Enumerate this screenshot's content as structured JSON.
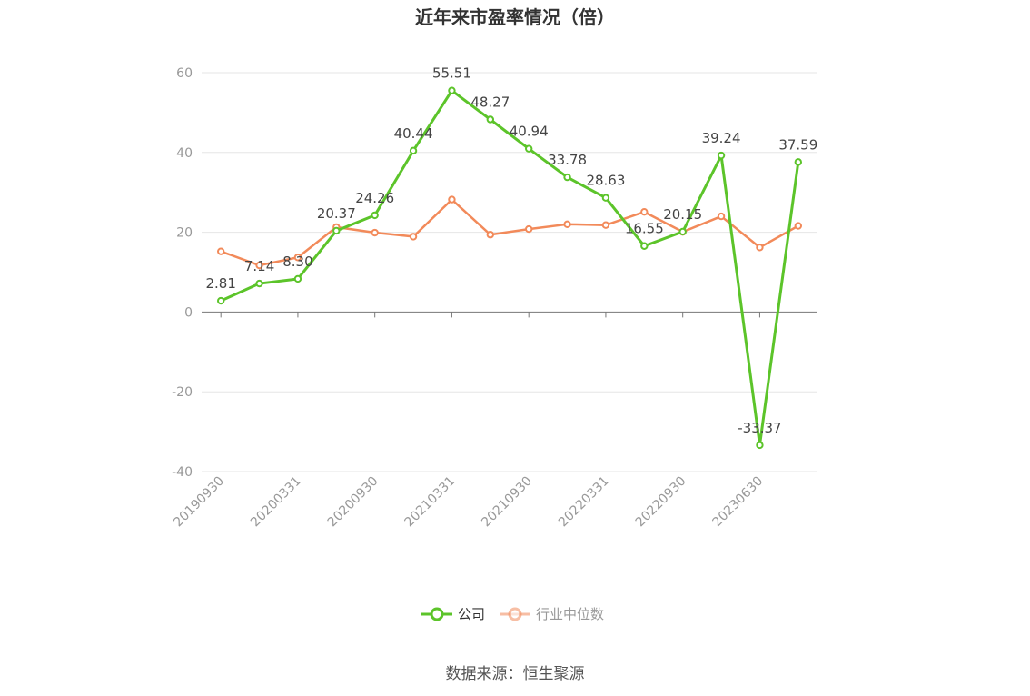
{
  "chart_data": {
    "type": "line",
    "title": "近年来市盈率情况（倍）",
    "source": "数据来源：恒生聚源",
    "x_tick_labels": [
      "20190930",
      "20200331",
      "20200930",
      "20210331",
      "20210930",
      "20220331",
      "20220930",
      "20230630"
    ],
    "y_ticks": [
      60,
      40,
      20,
      0,
      -20,
      -40
    ],
    "ylim": [
      -40,
      60
    ],
    "grid": true,
    "legend_position": "bottom",
    "series": [
      {
        "name": "公司",
        "color": "#5cc42a",
        "values": [
          2.81,
          7.14,
          8.3,
          20.37,
          24.26,
          40.44,
          55.51,
          48.27,
          40.94,
          33.78,
          28.63,
          16.55,
          20.15,
          39.24,
          -33.37,
          37.59
        ],
        "labels": [
          "2.81",
          "7.14",
          "8.30",
          "20.37",
          "24.26",
          "40.44",
          "55.51",
          "48.27",
          "40.94",
          "33.78",
          "28.63",
          "16.55",
          "20.15",
          "39.24",
          "-33.37",
          "37.59"
        ]
      },
      {
        "name": "行业中位数",
        "color": "#f28a5a",
        "values": [
          15.2,
          11.7,
          13.7,
          21.3,
          19.9,
          18.9,
          28.2,
          19.4,
          20.8,
          22.0,
          21.8,
          25.1,
          20.1,
          24.0,
          16.2,
          21.6
        ]
      }
    ]
  }
}
